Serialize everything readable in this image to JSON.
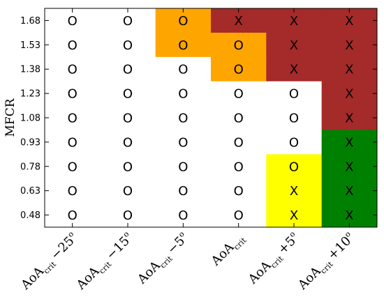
{
  "chart_data": {
    "type": "heatmap",
    "ylabel": "MFCR",
    "y_ticks": [
      "1.68",
      "1.53",
      "1.38",
      "1.23",
      "1.08",
      "0.93",
      "0.78",
      "0.63",
      "0.48"
    ],
    "x_ticks": [
      {
        "base": "AoA",
        "sub": "crit",
        "offset": "−25",
        "sup": "o"
      },
      {
        "base": "AoA",
        "sub": "crit",
        "offset": "−15",
        "sup": "o"
      },
      {
        "base": "AoA",
        "sub": "crit",
        "offset": "−5",
        "sup": "o"
      },
      {
        "base": "AoA",
        "sub": "crit",
        "offset": "",
        "sup": ""
      },
      {
        "base": "AoA",
        "sub": "crit",
        "offset": "+5",
        "sup": "o"
      },
      {
        "base": "AoA",
        "sub": "crit",
        "offset": "+10",
        "sup": "o"
      }
    ],
    "cells": [
      [
        "O",
        "O",
        "O",
        "X",
        "X",
        "X"
      ],
      [
        "O",
        "O",
        "O",
        "O",
        "X",
        "X"
      ],
      [
        "O",
        "O",
        "O",
        "O",
        "X",
        "X"
      ],
      [
        "O",
        "O",
        "O",
        "O",
        "O",
        "X"
      ],
      [
        "O",
        "O",
        "O",
        "O",
        "O",
        "X"
      ],
      [
        "O",
        "O",
        "O",
        "O",
        "O",
        "X"
      ],
      [
        "O",
        "O",
        "O",
        "O",
        "O",
        "X"
      ],
      [
        "O",
        "O",
        "O",
        "O",
        "X",
        "X"
      ],
      [
        "O",
        "O",
        "O",
        "O",
        "X",
        "X"
      ]
    ],
    "cell_colors": [
      [
        "white",
        "white",
        "orange",
        "darkred",
        "darkred",
        "darkred"
      ],
      [
        "white",
        "white",
        "orange",
        "orange",
        "darkred",
        "darkred"
      ],
      [
        "white",
        "white",
        "white",
        "orange",
        "darkred",
        "darkred"
      ],
      [
        "white",
        "white",
        "white",
        "white",
        "white",
        "darkred"
      ],
      [
        "white",
        "white",
        "white",
        "white",
        "white",
        "darkred"
      ],
      [
        "white",
        "white",
        "white",
        "white",
        "white",
        "green"
      ],
      [
        "white",
        "white",
        "white",
        "white",
        "yellow",
        "green"
      ],
      [
        "white",
        "white",
        "white",
        "white",
        "yellow",
        "green"
      ],
      [
        "white",
        "white",
        "white",
        "white",
        "yellow",
        "green"
      ]
    ],
    "palette": {
      "white": "#ffffff",
      "orange": "#ffa500",
      "darkred": "#a52a2a",
      "green": "#008000",
      "yellow": "#ffff00"
    }
  }
}
